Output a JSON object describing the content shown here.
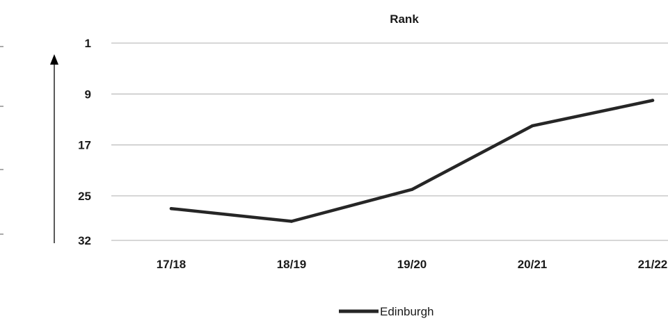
{
  "chart_data": {
    "type": "line",
    "title": "Rank",
    "xlabel": "",
    "ylabel": "",
    "categories": [
      "17/18",
      "18/19",
      "19/20",
      "20/21",
      "21/22"
    ],
    "series": [
      {
        "name": "Edinburgh",
        "values": [
          27,
          29,
          24,
          14,
          10
        ],
        "color": "#262626"
      }
    ],
    "y_ticks": [
      "1",
      "9",
      "17",
      "25",
      "32"
    ],
    "ylim": [
      1,
      32
    ],
    "y_inverted": true,
    "grid": true,
    "legend_position": "bottom"
  }
}
